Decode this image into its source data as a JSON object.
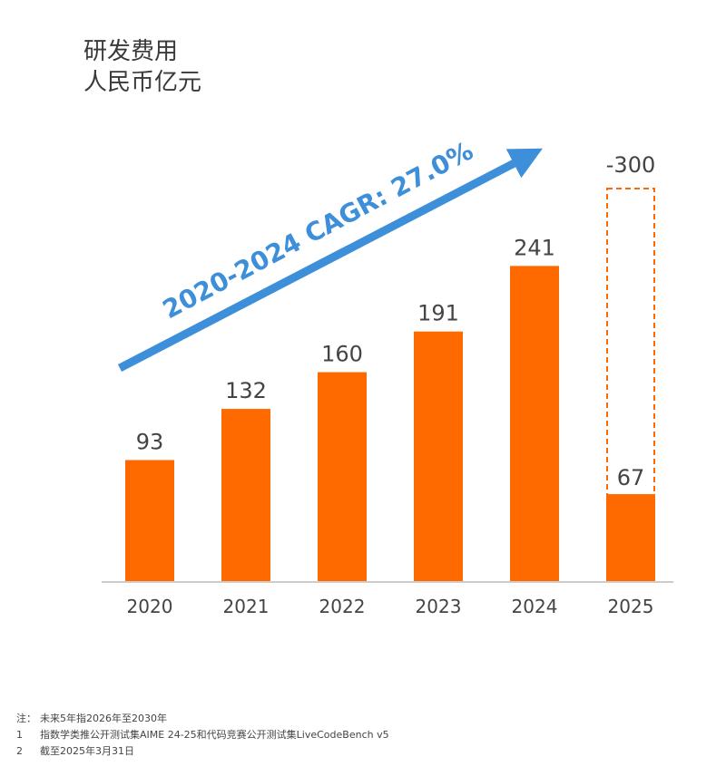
{
  "title": {
    "line1": "研发费用",
    "line2": "人民币亿元"
  },
  "chart_data": {
    "type": "bar",
    "categories": [
      "2020",
      "2021",
      "2022",
      "2023",
      "2024",
      "2025"
    ],
    "values": [
      93,
      132,
      160,
      191,
      241,
      67
    ],
    "value_labels": [
      "93",
      "132",
      "160",
      "191",
      "241",
      "67"
    ],
    "planned": {
      "category": "2025",
      "value": 300,
      "label": "-300",
      "style": "dashed-outline"
    },
    "trend_annotation": "2020-2024 CAGR: 27.0%",
    "ylim": [
      0,
      320
    ],
    "colors": {
      "bar": "#ff6a00",
      "arrow": "#3d8fd9",
      "axis": "#cccccc"
    }
  },
  "footnotes": [
    {
      "mark": "注：",
      "text": "未来5年指2026年至2030年"
    },
    {
      "mark": "1",
      "text": "指数学类推公开测试集AIME 24-25和代码竞赛公开测试集LiveCodeBench v5"
    },
    {
      "mark": "2",
      "text": "截至2025年3月31日"
    }
  ]
}
